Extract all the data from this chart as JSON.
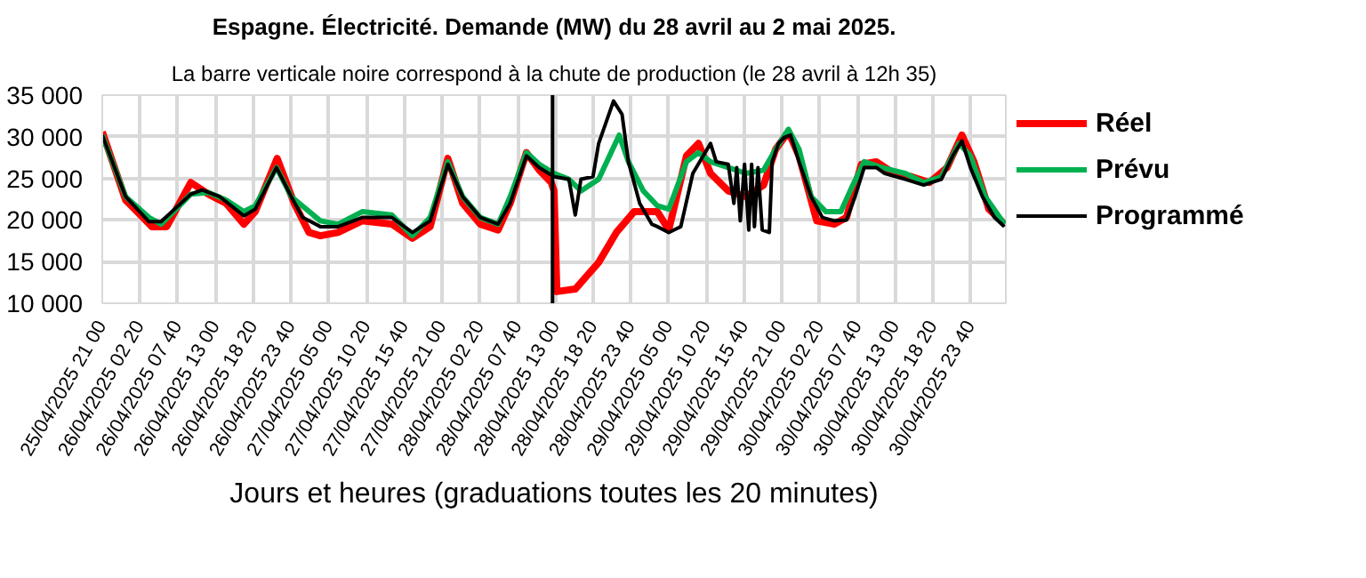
{
  "chart_data": {
    "type": "line",
    "title": "Espagne. Électricité. Demande (MW) du 28 avril au 2 mai 2025.",
    "subtitle": "La barre verticale noire correspond à la chute de production (le 28 avril à 12h 35)",
    "xlabel": "Jours et heures (graduations toutes les 20 minutes)",
    "xlim": [
      "2025-04-25T21:00",
      "2025-05-01T04:36"
    ],
    "ylim": [
      10000,
      35000
    ],
    "yticks": [
      {
        "value": 10000,
        "label": "10 000"
      },
      {
        "value": 15000,
        "label": "15 000"
      },
      {
        "value": 20000,
        "label": "20 000"
      },
      {
        "value": 25000,
        "label": "25 000"
      },
      {
        "value": 30000,
        "label": "30 000"
      },
      {
        "value": 35000,
        "label": "35 000"
      }
    ],
    "xticks": [
      {
        "value": "2025-04-25T21:00",
        "label": "25/04/2025 21 00"
      },
      {
        "value": "2025-04-26T02:20",
        "label": "26/04/2025 02 20"
      },
      {
        "value": "2025-04-26T07:40",
        "label": "26/04/2025 07 40"
      },
      {
        "value": "2025-04-26T13:00",
        "label": "26/04/2025 13 00"
      },
      {
        "value": "2025-04-26T18:20",
        "label": "26/04/2025 18 20"
      },
      {
        "value": "2025-04-26T23:40",
        "label": "26/04/2025 23 40"
      },
      {
        "value": "2025-04-27T05:00",
        "label": "27/04/2025 05 00"
      },
      {
        "value": "2025-04-27T10:20",
        "label": "27/04/2025 10 20"
      },
      {
        "value": "2025-04-27T15:40",
        "label": "27/04/2025 15 40"
      },
      {
        "value": "2025-04-27T21:00",
        "label": "27/04/2025 21 00"
      },
      {
        "value": "2025-04-28T02:20",
        "label": "28/04/2025 02 20"
      },
      {
        "value": "2025-04-28T07:40",
        "label": "28/04/2025 07 40"
      },
      {
        "value": "2025-04-28T13:00",
        "label": "28/04/2025 13 00"
      },
      {
        "value": "2025-04-28T18:20",
        "label": "28/04/2025 18 20"
      },
      {
        "value": "2025-04-28T23:40",
        "label": "28/04/2025 23 40"
      },
      {
        "value": "2025-04-29T05:00",
        "label": "29/04/2025 05 00"
      },
      {
        "value": "2025-04-29T10:20",
        "label": "29/04/2025 10 20"
      },
      {
        "value": "2025-04-29T15:40",
        "label": "29/04/2025 15 40"
      },
      {
        "value": "2025-04-29T21:00",
        "label": "29/04/2025 21 00"
      },
      {
        "value": "2025-04-30T02:20",
        "label": "30/04/2025 02 20"
      },
      {
        "value": "2025-04-30T07:40",
        "label": "30/04/2025 07 40"
      },
      {
        "value": "2025-04-30T13:00",
        "label": "30/04/2025 13 00"
      },
      {
        "value": "2025-04-30T18:20",
        "label": "30/04/2025 18 20"
      },
      {
        "value": "2025-04-30T23:40",
        "label": "30/04/2025 23 40"
      }
    ],
    "grid": true,
    "legend": "right",
    "marker": "none",
    "line_style": "solid",
    "ref_lines": [
      {
        "axis": "x",
        "value": "2025-04-28T12:35",
        "color": "#000000"
      }
    ],
    "series": [
      {
        "name": "Réel",
        "color": "#ff0000",
        "x": [
          "2025-04-25T21:00",
          "2025-04-26T00:18",
          "2025-04-26T04:00",
          "2025-04-26T06:06",
          "2025-04-26T09:30",
          "2025-04-26T12:00",
          "2025-04-26T14:30",
          "2025-04-26T17:00",
          "2025-04-26T18:36",
          "2025-04-26T21:42",
          "2025-04-27T00:06",
          "2025-04-27T02:12",
          "2025-04-27T03:48",
          "2025-04-27T06:18",
          "2025-04-27T09:42",
          "2025-04-27T13:54",
          "2025-04-27T16:48",
          "2025-04-27T19:18",
          "2025-04-27T21:48",
          "2025-04-27T23:54",
          "2025-04-28T02:24",
          "2025-04-28T04:54",
          "2025-04-28T06:36",
          "2025-04-28T08:54",
          "2025-04-28T10:42",
          "2025-04-28T12:24",
          "2025-04-28T12:48",
          "2025-04-28T13:12",
          "2025-04-28T15:48",
          "2025-04-28T19:06",
          "2025-04-28T21:36",
          "2025-04-29T00:06",
          "2025-04-29T03:24",
          "2025-04-29T05:00",
          "2025-04-29T07:30",
          "2025-04-29T09:12",
          "2025-04-29T10:54",
          "2025-04-29T13:24",
          "2025-04-29T15:54",
          "2025-04-29T18:24",
          "2025-04-29T20:06",
          "2025-04-29T21:54",
          "2025-04-29T23:24",
          "2025-04-30T01:54",
          "2025-04-30T04:24",
          "2025-04-30T06:06",
          "2025-04-30T08:12",
          "2025-04-30T10:18",
          "2025-04-30T12:48",
          "2025-04-30T15:18",
          "2025-04-30T17:48",
          "2025-04-30T20:18",
          "2025-04-30T22:24",
          "2025-05-01T00:06",
          "2025-05-01T02:12",
          "2025-05-01T04:24"
        ],
        "values": [
          30600,
          22400,
          19200,
          19200,
          24500,
          23100,
          22000,
          19500,
          21000,
          27400,
          22000,
          18500,
          18100,
          18500,
          19900,
          19500,
          17800,
          19200,
          27400,
          22000,
          19500,
          18800,
          22000,
          28100,
          26000,
          24500,
          23500,
          11400,
          11700,
          14900,
          18500,
          21000,
          21000,
          18800,
          27700,
          29200,
          25600,
          23500,
          22800,
          24200,
          28500,
          30600,
          27700,
          19900,
          19500,
          20300,
          26700,
          27000,
          25600,
          25200,
          24500,
          26300,
          30200,
          27000,
          21300,
          19500
        ]
      },
      {
        "name": "Prévu",
        "color": "#00b050",
        "x": [
          "2025-04-25T21:00",
          "2025-04-26T00:18",
          "2025-04-26T03:36",
          "2025-04-26T05:18",
          "2025-04-26T09:30",
          "2025-04-26T12:00",
          "2025-04-26T14:30",
          "2025-04-26T17:00",
          "2025-04-26T18:36",
          "2025-04-26T21:36",
          "2025-04-26T23:42",
          "2025-04-27T03:48",
          "2025-04-27T06:18",
          "2025-04-27T09:42",
          "2025-04-27T13:54",
          "2025-04-27T16:48",
          "2025-04-27T19:18",
          "2025-04-27T21:48",
          "2025-04-27T23:54",
          "2025-04-28T02:24",
          "2025-04-28T04:54",
          "2025-04-28T06:36",
          "2025-04-28T08:54",
          "2025-04-28T10:42",
          "2025-04-28T12:48",
          "2025-04-28T14:54",
          "2025-04-28T16:36",
          "2025-04-28T19:06",
          "2025-04-28T22:00",
          "2025-04-28T23:18",
          "2025-04-29T01:24",
          "2025-04-29T03:24",
          "2025-04-29T05:00",
          "2025-04-29T07:30",
          "2025-04-29T09:12",
          "2025-04-29T10:54",
          "2025-04-29T13:24",
          "2025-04-29T15:54",
          "2025-04-29T18:24",
          "2025-04-29T20:06",
          "2025-04-29T21:54",
          "2025-04-29T23:24",
          "2025-04-30T01:06",
          "2025-04-30T03:12",
          "2025-04-30T05:18",
          "2025-04-30T07:00",
          "2025-04-30T08:36",
          "2025-04-30T11:06",
          "2025-04-30T14:24",
          "2025-04-30T17:00",
          "2025-04-30T19:30",
          "2025-04-30T22:00",
          "2025-04-30T23:36",
          "2025-05-01T01:42",
          "2025-05-01T04:24"
        ],
        "values": [
          30200,
          22800,
          20300,
          19500,
          23100,
          23300,
          22400,
          21000,
          21700,
          26300,
          22800,
          19900,
          19500,
          21000,
          20600,
          18100,
          20300,
          27000,
          22800,
          20300,
          19500,
          22800,
          28100,
          26700,
          25600,
          24900,
          23500,
          24900,
          30200,
          27000,
          23500,
          21700,
          21300,
          27000,
          28100,
          27000,
          26300,
          25600,
          26000,
          28500,
          30900,
          28500,
          22800,
          21000,
          21000,
          24200,
          27000,
          26300,
          25600,
          24500,
          25200,
          29200,
          27700,
          22800,
          19500
        ]
      },
      {
        "name": "Programmé",
        "color": "#000000",
        "x": [
          "2025-04-25T21:00",
          "2025-04-26T00:18",
          "2025-04-26T03:36",
          "2025-04-26T05:18",
          "2025-04-26T09:30",
          "2025-04-26T11:06",
          "2025-04-26T13:36",
          "2025-04-26T17:00",
          "2025-04-26T18:36",
          "2025-04-26T21:36",
          "2025-04-26T23:42",
          "2025-04-27T01:18",
          "2025-04-27T03:48",
          "2025-04-27T06:18",
          "2025-04-27T09:42",
          "2025-04-27T13:54",
          "2025-04-27T16:48",
          "2025-04-27T19:18",
          "2025-04-27T21:48",
          "2025-04-27T23:54",
          "2025-04-28T02:24",
          "2025-04-28T04:54",
          "2025-04-28T06:36",
          "2025-04-28T08:54",
          "2025-04-28T10:42",
          "2025-04-28T12:48",
          "2025-04-28T14:54",
          "2025-04-28T15:48",
          "2025-04-28T16:36",
          "2025-04-28T18:18",
          "2025-04-28T19:06",
          "2025-04-28T21:12",
          "2025-04-28T22:24",
          "2025-04-28T23:18",
          "2025-04-29T00:54",
          "2025-04-29T02:36",
          "2025-04-29T03:24",
          "2025-04-29T05:00",
          "2025-04-29T06:42",
          "2025-04-29T08:24",
          "2025-04-29T10:54",
          "2025-04-29T11:42",
          "2025-04-29T13:24",
          "2025-04-29T14:12",
          "2025-04-29T14:36",
          "2025-04-29T15:06",
          "2025-04-29T15:42",
          "2025-04-29T16:18",
          "2025-04-29T16:42",
          "2025-04-29T17:06",
          "2025-04-29T17:36",
          "2025-04-29T18:12",
          "2025-04-29T19:12",
          "2025-04-29T19:36",
          "2025-04-29T20:30",
          "2025-04-29T21:18",
          "2025-04-29T22:12",
          "2025-04-29T23:24",
          "2025-04-30T01:06",
          "2025-04-30T02:42",
          "2025-04-30T04:24",
          "2025-04-30T06:06",
          "2025-04-30T07:18",
          "2025-04-30T08:36",
          "2025-04-30T10:18",
          "2025-04-30T11:30",
          "2025-04-30T14:24",
          "2025-04-30T17:00",
          "2025-04-30T19:30",
          "2025-04-30T21:06",
          "2025-04-30T22:24",
          "2025-04-30T23:36",
          "2025-05-01T01:18",
          "2025-05-01T03:00",
          "2025-05-01T04:24"
        ],
        "values": [
          30200,
          22800,
          19800,
          19800,
          23100,
          23600,
          22800,
          20500,
          21300,
          26300,
          22800,
          20300,
          19200,
          19200,
          20300,
          20300,
          18500,
          19900,
          26700,
          22800,
          20300,
          19500,
          22000,
          27700,
          26300,
          25200,
          24900,
          20600,
          24900,
          25200,
          29200,
          34300,
          32700,
          27000,
          22000,
          19500,
          19200,
          18500,
          19200,
          25600,
          29200,
          27000,
          26700,
          22000,
          26300,
          19900,
          26700,
          18800,
          26700,
          19200,
          26300,
          18800,
          18500,
          27000,
          29200,
          29900,
          30200,
          27000,
          22800,
          20300,
          19900,
          20000,
          22800,
          26300,
          26300,
          25600,
          24900,
          24200,
          24900,
          27700,
          29500,
          26300,
          22800,
          20300,
          19200
        ]
      }
    ]
  }
}
